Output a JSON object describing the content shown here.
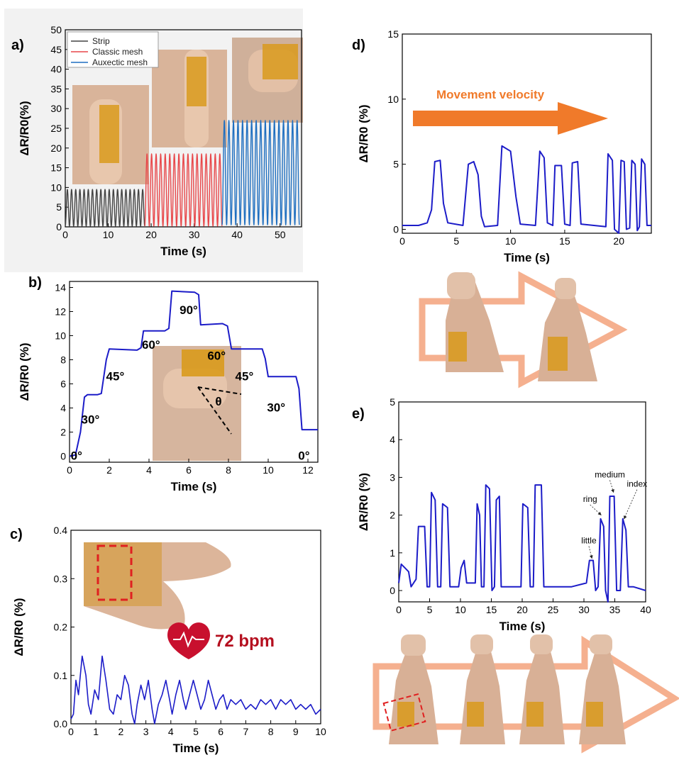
{
  "colors": {
    "blue": "#1c1cc8",
    "black": "#444444",
    "red": "#e8474a",
    "auxetic": "#1f6fc0",
    "arrow_orange": "#f07a2a",
    "arrow_outline": "#f5b08f",
    "heart": "#c8102e",
    "bpm_text": "#b50f1f",
    "photo_tape": "#d99a1c",
    "photo_skin": "#d9b49a"
  },
  "panels": {
    "a": {
      "label": "a)"
    },
    "b": {
      "label": "b)"
    },
    "c": {
      "label": "c)",
      "bpm_text": "72 bpm"
    },
    "d": {
      "label": "d)",
      "velocity_text": "Movement velocity"
    },
    "e": {
      "label": "e)"
    }
  },
  "chart_data": [
    {
      "id": "a",
      "type": "line",
      "xlabel": "Time (s)",
      "ylabel": "ΔR/R0(%)",
      "xlim": [
        0,
        55
      ],
      "ylim": [
        0,
        50
      ],
      "xticks": [
        0,
        10,
        20,
        30,
        40,
        50
      ],
      "yticks": [
        0,
        5,
        10,
        15,
        20,
        25,
        30,
        35,
        40,
        45,
        50
      ],
      "legend": {
        "placement": "top-left"
      },
      "series": [
        {
          "name": "Strip",
          "color": "#444444",
          "x_range": [
            0,
            18.5
          ],
          "cycles": 19,
          "min": 0.2,
          "max": 9.5
        },
        {
          "name": "Classic mesh",
          "color": "#e8474a",
          "x_range": [
            18.5,
            36.5
          ],
          "cycles": 17,
          "min": 0.2,
          "max": 18.5
        },
        {
          "name": "Auxectic mesh",
          "color": "#1f6fc0",
          "x_range": [
            36.5,
            54.5
          ],
          "cycles": 17,
          "min": 0.5,
          "max": 27
        }
      ]
    },
    {
      "id": "b",
      "type": "line",
      "xlabel": "Time (s)",
      "ylabel": "ΔR/R0 (%)",
      "xlim": [
        0,
        12.5
      ],
      "ylim": [
        -0.5,
        14.5
      ],
      "xticks": [
        0,
        2,
        4,
        6,
        8,
        10,
        12
      ],
      "yticks": [
        0,
        2,
        4,
        6,
        8,
        10,
        12,
        14
      ],
      "points": [
        [
          0,
          0
        ],
        [
          0.3,
          0.1
        ],
        [
          0.55,
          2
        ],
        [
          0.75,
          4.9
        ],
        [
          0.9,
          5.1
        ],
        [
          1.4,
          5.1
        ],
        [
          1.6,
          5.2
        ],
        [
          1.85,
          8.0
        ],
        [
          2.0,
          8.9
        ],
        [
          3.4,
          8.8
        ],
        [
          3.6,
          9.0
        ],
        [
          3.72,
          10.4
        ],
        [
          4.8,
          10.4
        ],
        [
          5.0,
          10.6
        ],
        [
          5.15,
          13.7
        ],
        [
          6.3,
          13.6
        ],
        [
          6.5,
          13.4
        ],
        [
          6.6,
          10.9
        ],
        [
          7.7,
          11.0
        ],
        [
          7.95,
          10.8
        ],
        [
          8.15,
          8.9
        ],
        [
          9.7,
          8.9
        ],
        [
          9.85,
          8.1
        ],
        [
          10.0,
          6.6
        ],
        [
          11.4,
          6.6
        ],
        [
          11.55,
          5.6
        ],
        [
          11.7,
          2.2
        ],
        [
          12.5,
          2.2
        ]
      ],
      "annotations": [
        "0°",
        "30°",
        "45°",
        "60°",
        "90°",
        "60°",
        "45°",
        "30°",
        "0°",
        "θ"
      ]
    },
    {
      "id": "c",
      "type": "line",
      "xlabel": "Time (s)",
      "ylabel": "ΔR/R0 (%)",
      "xlim": [
        0,
        10
      ],
      "ylim": [
        0,
        0.4
      ],
      "xticks": [
        0,
        1,
        2,
        3,
        4,
        5,
        6,
        7,
        8,
        9,
        10
      ],
      "yticks": [
        0.0,
        0.1,
        0.2,
        0.3,
        0.4
      ],
      "points": [
        [
          0,
          0.01
        ],
        [
          0.1,
          0.02
        ],
        [
          0.2,
          0.09
        ],
        [
          0.3,
          0.06
        ],
        [
          0.45,
          0.14
        ],
        [
          0.6,
          0.1
        ],
        [
          0.7,
          0.04
        ],
        [
          0.8,
          0.02
        ],
        [
          0.95,
          0.07
        ],
        [
          1.1,
          0.05
        ],
        [
          1.25,
          0.14
        ],
        [
          1.4,
          0.09
        ],
        [
          1.55,
          0.03
        ],
        [
          1.7,
          0.02
        ],
        [
          1.85,
          0.06
        ],
        [
          2.0,
          0.05
        ],
        [
          2.15,
          0.1
        ],
        [
          2.3,
          0.08
        ],
        [
          2.45,
          0.02
        ],
        [
          2.55,
          0.0
        ],
        [
          2.65,
          0.04
        ],
        [
          2.8,
          0.08
        ],
        [
          2.95,
          0.05
        ],
        [
          3.1,
          0.09
        ],
        [
          3.25,
          0.03
        ],
        [
          3.35,
          0.0
        ],
        [
          3.5,
          0.04
        ],
        [
          3.65,
          0.06
        ],
        [
          3.8,
          0.09
        ],
        [
          3.95,
          0.05
        ],
        [
          4.05,
          0.02
        ],
        [
          4.2,
          0.06
        ],
        [
          4.35,
          0.09
        ],
        [
          4.5,
          0.05
        ],
        [
          4.6,
          0.03
        ],
        [
          4.75,
          0.06
        ],
        [
          4.9,
          0.09
        ],
        [
          5.05,
          0.06
        ],
        [
          5.2,
          0.03
        ],
        [
          5.35,
          0.05
        ],
        [
          5.5,
          0.09
        ],
        [
          5.65,
          0.06
        ],
        [
          5.8,
          0.03
        ],
        [
          5.95,
          0.05
        ],
        [
          6.1,
          0.06
        ],
        [
          6.25,
          0.03
        ],
        [
          6.4,
          0.05
        ],
        [
          6.6,
          0.04
        ],
        [
          6.8,
          0.05
        ],
        [
          7.0,
          0.03
        ],
        [
          7.2,
          0.04
        ],
        [
          7.4,
          0.03
        ],
        [
          7.6,
          0.05
        ],
        [
          7.8,
          0.04
        ],
        [
          8.0,
          0.05
        ],
        [
          8.2,
          0.03
        ],
        [
          8.4,
          0.05
        ],
        [
          8.6,
          0.04
        ],
        [
          8.8,
          0.05
        ],
        [
          9.0,
          0.03
        ],
        [
          9.2,
          0.04
        ],
        [
          9.4,
          0.03
        ],
        [
          9.6,
          0.04
        ],
        [
          9.8,
          0.02
        ],
        [
          10.0,
          0.03
        ]
      ]
    },
    {
      "id": "d",
      "type": "line",
      "xlabel": "Time (s)",
      "ylabel": "ΔR/R0 (%)",
      "xlim": [
        0,
        23
      ],
      "ylim": [
        -0.3,
        15
      ],
      "xticks": [
        0,
        5,
        10,
        15,
        20
      ],
      "yticks": [
        0,
        5,
        10,
        15
      ],
      "points": [
        [
          0,
          0.3
        ],
        [
          1.5,
          0.3
        ],
        [
          2.3,
          0.5
        ],
        [
          2.7,
          1.5
        ],
        [
          3.0,
          5.2
        ],
        [
          3.5,
          5.3
        ],
        [
          3.8,
          2.0
        ],
        [
          4.2,
          0.5
        ],
        [
          5.6,
          0.3
        ],
        [
          6.1,
          5.0
        ],
        [
          6.6,
          5.2
        ],
        [
          7.0,
          4.2
        ],
        [
          7.3,
          1.0
        ],
        [
          7.6,
          0.2
        ],
        [
          8.8,
          0.3
        ],
        [
          9.2,
          6.4
        ],
        [
          10.0,
          6.0
        ],
        [
          10.5,
          2.5
        ],
        [
          10.9,
          0.4
        ],
        [
          12.3,
          0.3
        ],
        [
          12.7,
          6.0
        ],
        [
          13.1,
          5.5
        ],
        [
          13.4,
          0.5
        ],
        [
          13.9,
          0.3
        ],
        [
          14.1,
          4.9
        ],
        [
          14.7,
          4.9
        ],
        [
          15.0,
          0.4
        ],
        [
          15.5,
          0.3
        ],
        [
          15.7,
          5.1
        ],
        [
          16.2,
          5.2
        ],
        [
          16.5,
          0.4
        ],
        [
          18.8,
          0.2
        ],
        [
          19.0,
          5.8
        ],
        [
          19.4,
          5.3
        ],
        [
          19.6,
          0.0
        ],
        [
          20.0,
          -0.3
        ],
        [
          20.2,
          5.3
        ],
        [
          20.5,
          5.2
        ],
        [
          20.7,
          0.0
        ],
        [
          21.0,
          0.1
        ],
        [
          21.2,
          5.3
        ],
        [
          21.5,
          5.0
        ],
        [
          21.7,
          -0.1
        ],
        [
          21.9,
          0.2
        ],
        [
          22.1,
          5.4
        ],
        [
          22.4,
          5.0
        ],
        [
          22.6,
          0.3
        ],
        [
          23,
          0.3
        ]
      ]
    },
    {
      "id": "e",
      "type": "line",
      "xlabel": "Time (s)",
      "ylabel": "ΔR/R0 (%)",
      "xlim": [
        0,
        40
      ],
      "ylim": [
        -0.3,
        5
      ],
      "xticks": [
        0,
        5,
        10,
        15,
        20,
        25,
        30,
        35,
        40
      ],
      "yticks": [
        0,
        1,
        2,
        3,
        4,
        5
      ],
      "points": [
        [
          0,
          0.2
        ],
        [
          0.4,
          0.7
        ],
        [
          1.0,
          0.6
        ],
        [
          1.6,
          0.5
        ],
        [
          2.0,
          0.1
        ],
        [
          2.8,
          0.3
        ],
        [
          3.2,
          1.7
        ],
        [
          4.2,
          1.7
        ],
        [
          4.6,
          0.1
        ],
        [
          5.0,
          0.1
        ],
        [
          5.3,
          2.6
        ],
        [
          5.9,
          2.4
        ],
        [
          6.3,
          0.1
        ],
        [
          6.8,
          0.1
        ],
        [
          7.1,
          2.3
        ],
        [
          7.9,
          2.2
        ],
        [
          8.3,
          0.1
        ],
        [
          9.7,
          0.1
        ],
        [
          10.1,
          0.6
        ],
        [
          10.6,
          0.8
        ],
        [
          11.0,
          0.2
        ],
        [
          12.4,
          0.2
        ],
        [
          12.7,
          2.3
        ],
        [
          13.1,
          2.0
        ],
        [
          13.4,
          0.1
        ],
        [
          13.8,
          0.1
        ],
        [
          14.1,
          2.8
        ],
        [
          14.7,
          2.7
        ],
        [
          15.1,
          0.0
        ],
        [
          15.5,
          0.1
        ],
        [
          15.8,
          2.4
        ],
        [
          16.3,
          2.5
        ],
        [
          16.6,
          0.1
        ],
        [
          19.8,
          0.1
        ],
        [
          20.1,
          2.3
        ],
        [
          20.9,
          2.2
        ],
        [
          21.3,
          0.1
        ],
        [
          21.8,
          0.1
        ],
        [
          22.1,
          2.8
        ],
        [
          23.1,
          2.8
        ],
        [
          23.5,
          0.1
        ],
        [
          26.0,
          0.1
        ],
        [
          28.0,
          0.1
        ],
        [
          30.4,
          0.2
        ],
        [
          30.9,
          0.8
        ],
        [
          31.5,
          0.8
        ],
        [
          31.9,
          0.0
        ],
        [
          32.3,
          0.1
        ],
        [
          32.7,
          1.9
        ],
        [
          33.2,
          1.7
        ],
        [
          33.5,
          0.0
        ],
        [
          33.9,
          -0.3
        ],
        [
          34.2,
          2.5
        ],
        [
          34.9,
          2.5
        ],
        [
          35.3,
          0.0
        ],
        [
          35.9,
          0.0
        ],
        [
          36.3,
          1.9
        ],
        [
          36.8,
          1.6
        ],
        [
          37.2,
          0.1
        ],
        [
          38.0,
          0.1
        ],
        [
          40,
          0.0
        ]
      ],
      "annotations": [
        "medium",
        "ring",
        "index",
        "little"
      ]
    }
  ]
}
